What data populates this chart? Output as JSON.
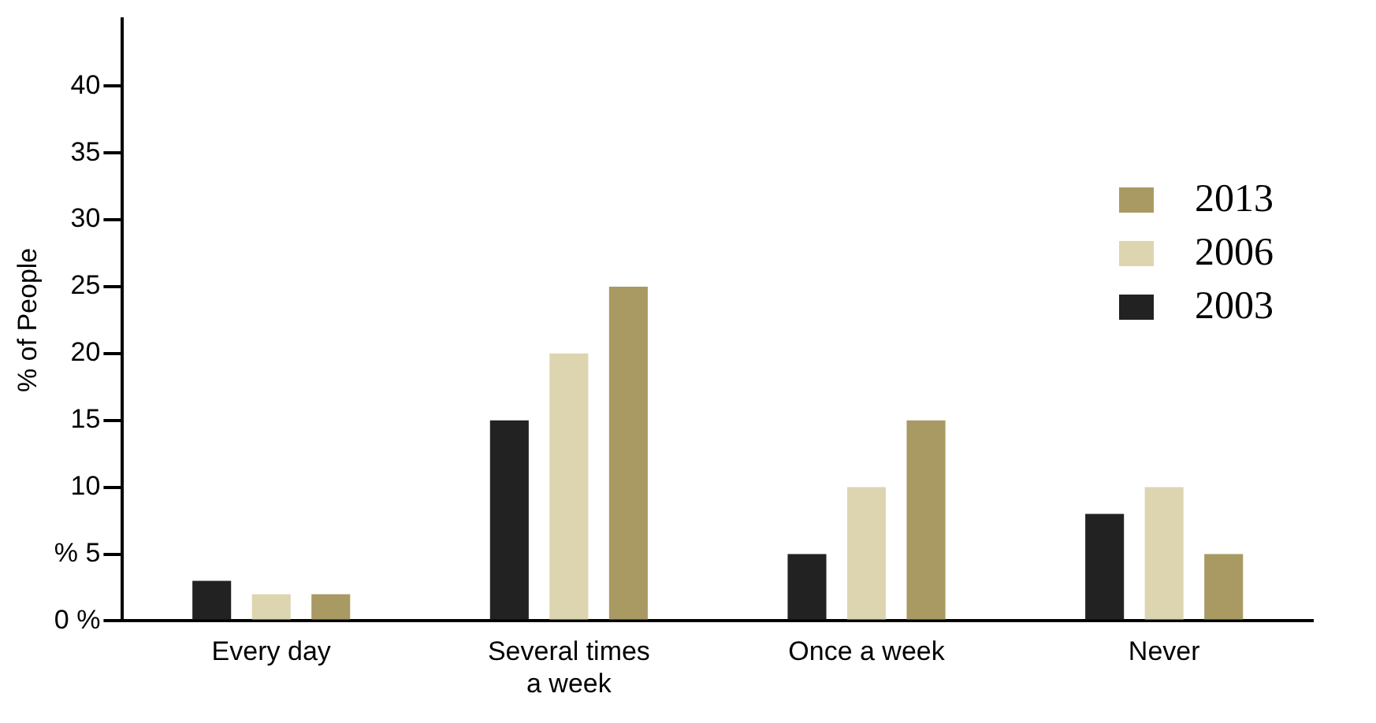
{
  "chart_data": {
    "type": "bar",
    "ylabel": "% of People",
    "categories": [
      "Every day",
      "Several times a week",
      "Once a week",
      "Never"
    ],
    "series": [
      {
        "name": "2003",
        "color": "#222222",
        "values": [
          3,
          15,
          5,
          8
        ]
      },
      {
        "name": "2006",
        "color": "#ddd5b0",
        "values": [
          2,
          20,
          10,
          10
        ]
      },
      {
        "name": "2013",
        "color": "#a89a62",
        "values": [
          2,
          25,
          15,
          5
        ]
      }
    ],
    "ylim": [
      0,
      45
    ],
    "yticks": [
      {
        "value": 0,
        "label": "0 %"
      },
      {
        "value": 5,
        "label": "% 5"
      },
      10,
      15,
      20,
      25,
      30,
      35,
      40
    ],
    "grid": false,
    "legend": "top right"
  }
}
